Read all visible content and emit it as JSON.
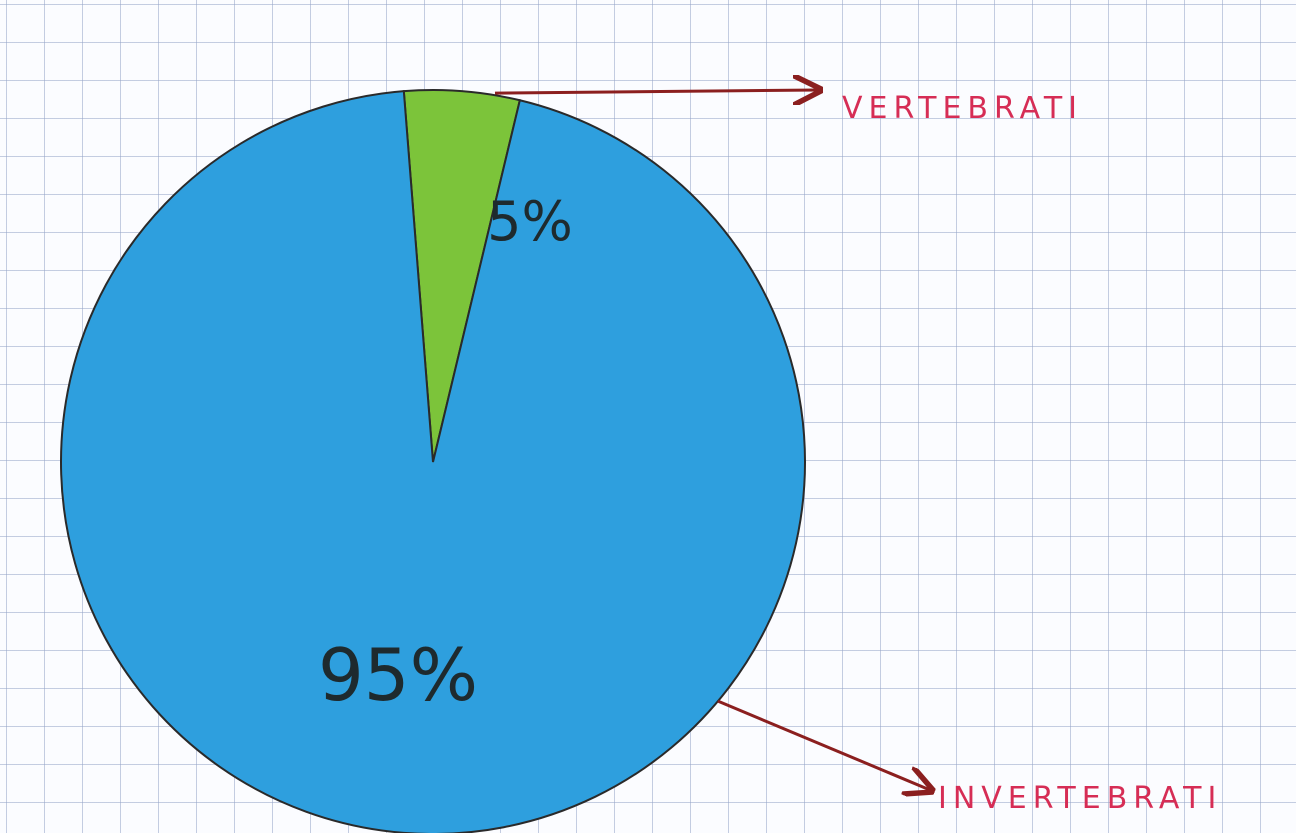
{
  "chart_data": {
    "type": "pie",
    "title": "",
    "slices": [
      {
        "label": "VERTEBRATI",
        "value": 5,
        "value_label": "5%",
        "color": "#7cc43a"
      },
      {
        "label": "INVERTEBRATI",
        "value": 95,
        "value_label": "95%",
        "color": "#2e9fde"
      }
    ],
    "legend": "none",
    "label_color": "#d62d55",
    "arrow_color": "#8b1f1f",
    "outline_color": "#2a2a2a"
  }
}
